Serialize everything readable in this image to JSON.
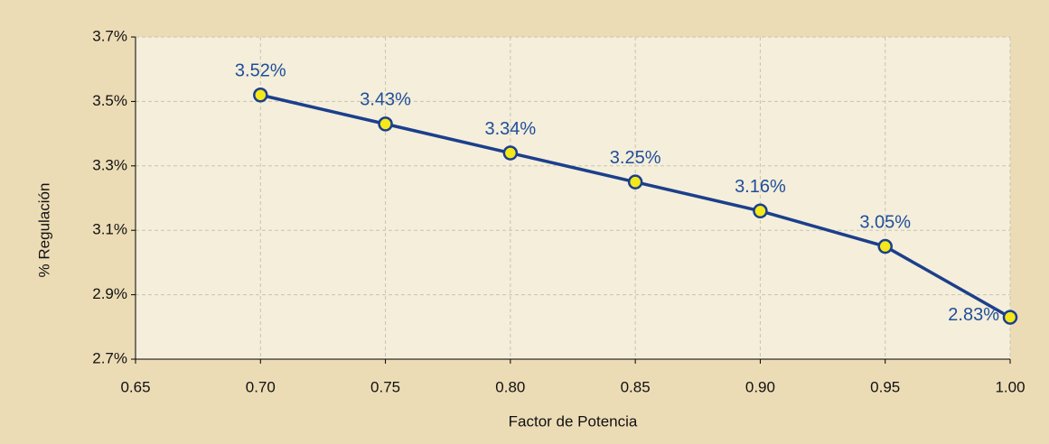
{
  "chart_data": {
    "type": "line",
    "x_label": "Factor de Potencia",
    "y_label": "% Regulación",
    "x": [
      0.7,
      0.75,
      0.8,
      0.85,
      0.9,
      0.95,
      1.0
    ],
    "series": [
      {
        "color": "#1b3f8b",
        "marker_color": "#f4e81a",
        "values": [
          3.52,
          3.43,
          3.34,
          3.25,
          3.16,
          3.05,
          2.83
        ],
        "value_labels": [
          "3.52%",
          "3.43%",
          "3.34%",
          "3.25%",
          "3.16%",
          "3.05%",
          "2.83%"
        ]
      }
    ],
    "xlim": [
      0.65,
      1.0
    ],
    "xticks": [
      0.65,
      {
        "value": 0.7,
        "label": "0.70"
      },
      0.75,
      {
        "value": 0.8,
        "label": "0.80"
      },
      0.85,
      {
        "value": 0.9,
        "label": "0.90"
      },
      0.95,
      {
        "value": 1.0,
        "label": "1.00"
      }
    ],
    "ylim": [
      2.7,
      3.7
    ],
    "yticks": [
      {
        "value": 2.7,
        "label": "2.7%"
      },
      {
        "value": 2.9,
        "label": "2.9%"
      },
      {
        "value": 3.1,
        "label": "3.1%"
      },
      {
        "value": 3.3,
        "label": "3.3%"
      },
      {
        "value": 3.5,
        "label": "3.5%"
      },
      {
        "value": 3.7,
        "label": "3.7%"
      }
    ],
    "grid": true
  }
}
